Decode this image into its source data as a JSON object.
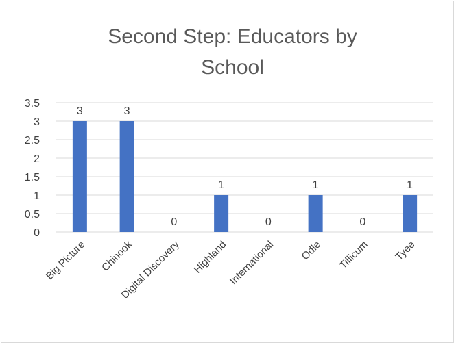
{
  "chart_data": {
    "type": "bar",
    "title_lines": [
      "Second Step: Educators by",
      "School"
    ],
    "categories": [
      "Big Picture",
      "Chinook",
      "Digital Discovery",
      "Highland",
      "International",
      "Odle",
      "Tillicum",
      "Tyee"
    ],
    "values": [
      3,
      3,
      0,
      1,
      0,
      1,
      0,
      1
    ],
    "data_labels": [
      "3",
      "3",
      "0",
      "1",
      "0",
      "1",
      "0",
      "1"
    ],
    "y_ticks": [
      "0",
      "0.5",
      "1",
      "1.5",
      "2",
      "2.5",
      "3",
      "3.5"
    ],
    "ylim": [
      0,
      3.5
    ],
    "grid": true,
    "legend": "none",
    "colors": {
      "bar": "#4472c4",
      "grid": "#d9d9d9",
      "text": "#595959"
    }
  }
}
